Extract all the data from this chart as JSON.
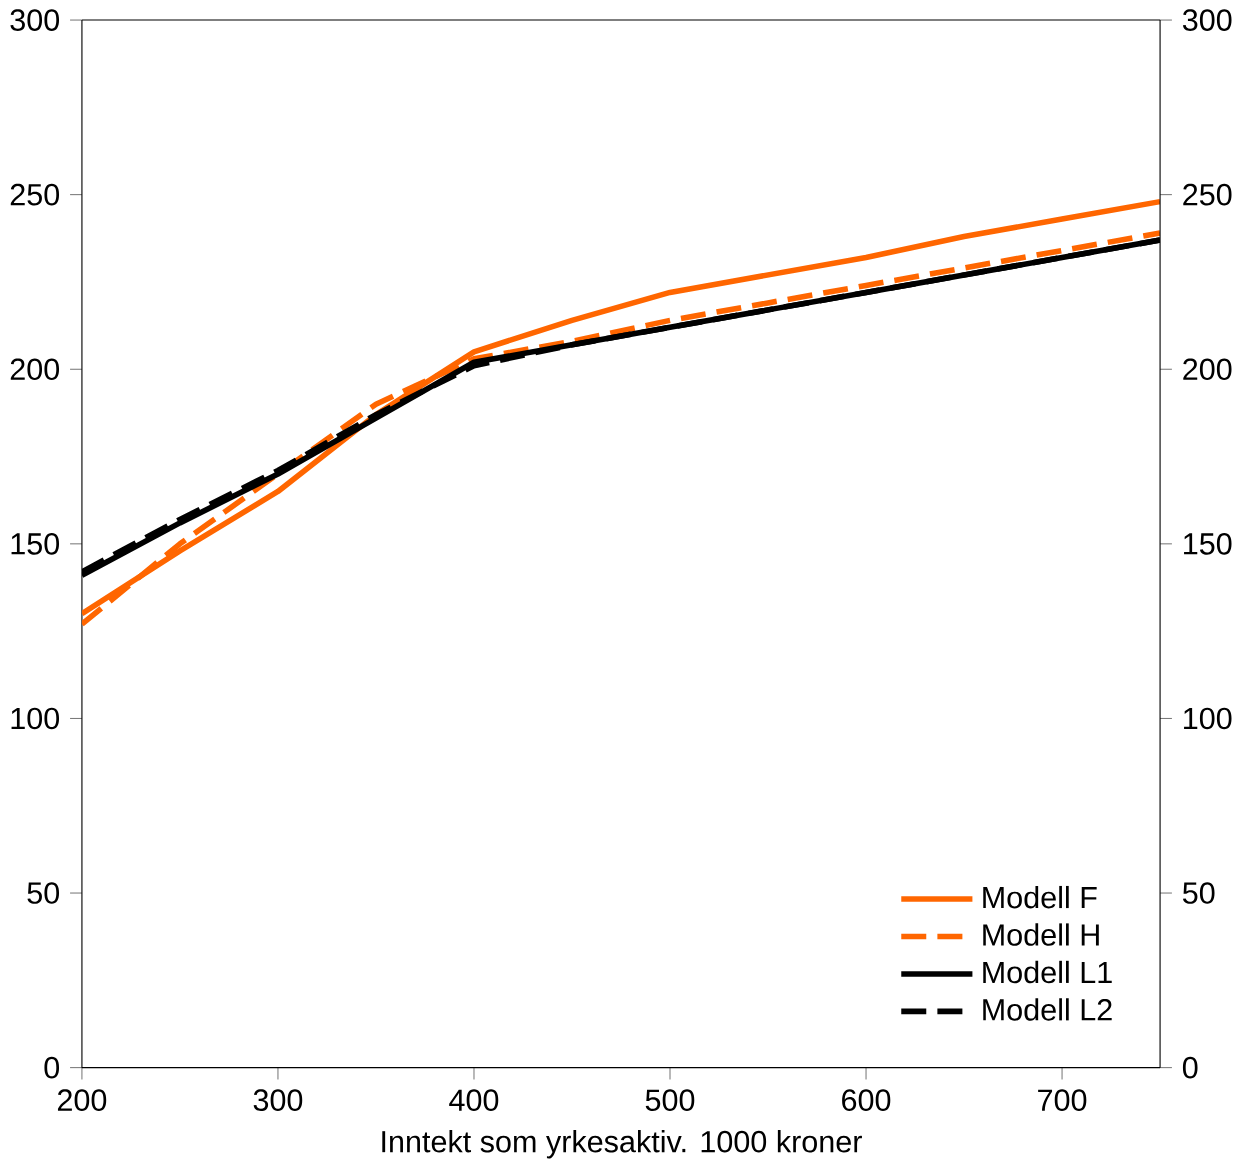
{
  "chart_data": {
    "type": "line",
    "xlabel": "Inntekt som yrkesaktiv. 1000 kroner",
    "x": [
      200,
      250,
      300,
      350,
      400,
      450,
      500,
      550,
      600,
      650,
      700,
      750
    ],
    "series": [
      {
        "name": "Modell F",
        "color": "#ff6600",
        "line_style": "solid",
        "values": [
          130,
          148,
          165,
          187,
          205,
          214,
          222,
          227,
          232,
          238,
          243,
          248
        ]
      },
      {
        "name": "Modell H",
        "color": "#ff6600",
        "line_style": "dashed",
        "values": [
          127,
          150,
          170,
          190,
          203,
          208,
          214,
          219,
          224,
          229,
          234,
          239
        ]
      },
      {
        "name": "Modell L1",
        "color": "#000000",
        "line_style": "solid",
        "values": [
          141,
          156,
          170,
          186,
          202,
          207,
          212,
          217,
          222,
          227,
          232,
          237
        ]
      },
      {
        "name": "Modell L2",
        "color": "#000000",
        "line_style": "dashed",
        "values": [
          142,
          157,
          171,
          187,
          201,
          207,
          212,
          217,
          222,
          227,
          232,
          237
        ]
      }
    ],
    "xlim": [
      200,
      750
    ],
    "xticks": [
      200,
      300,
      400,
      500,
      600,
      700
    ],
    "ylim": [
      0,
      300
    ],
    "yticks": [
      0,
      50,
      100,
      150,
      200,
      250,
      300
    ],
    "y2lim": [
      0,
      300
    ],
    "y2ticks": [
      0,
      50,
      100,
      150,
      200,
      250,
      300
    ],
    "legend": "bottom right",
    "grid": false,
    "marker": "none"
  }
}
